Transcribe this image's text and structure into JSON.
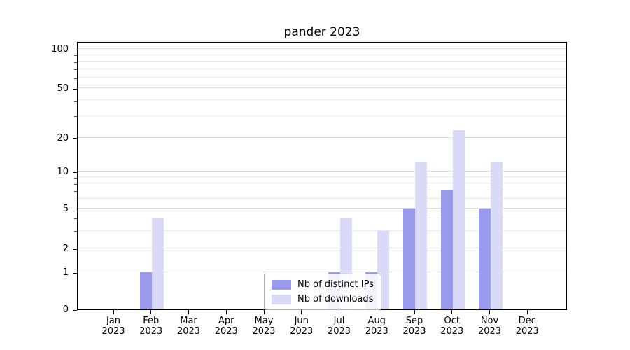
{
  "title": "pander 2023",
  "colors": {
    "distinct_ips": "#9b9bee",
    "downloads": "#d9d9f8",
    "grid_minor": "#e8e8e8",
    "grid_major": "#dcdcdc",
    "axis": "#000000",
    "legend_border": "#b0b0b0"
  },
  "chart_data": {
    "type": "bar",
    "title": "pander 2023",
    "categories": [
      "Jan 2023",
      "Feb 2023",
      "Mar 2023",
      "Apr 2023",
      "May 2023",
      "Jun 2023",
      "Jul 2023",
      "Aug 2023",
      "Sep 2023",
      "Oct 2023",
      "Nov 2023",
      "Dec 2023"
    ],
    "series": [
      {
        "name": "Nb of distinct IPs",
        "values": [
          0,
          1,
          0,
          0,
          0,
          0,
          1,
          1,
          5,
          7,
          5,
          0
        ]
      },
      {
        "name": "Nb of downloads",
        "values": [
          0,
          4,
          0,
          0,
          0,
          0,
          4,
          3,
          12,
          23,
          12,
          0
        ]
      }
    ],
    "yscale": "symlog",
    "yticks": [
      0,
      1,
      2,
      5,
      10,
      20,
      50,
      100
    ],
    "ylim": [
      0,
      117
    ],
    "xlabel": "",
    "ylabel": "",
    "grid": "on",
    "legend_position": "lower center"
  }
}
